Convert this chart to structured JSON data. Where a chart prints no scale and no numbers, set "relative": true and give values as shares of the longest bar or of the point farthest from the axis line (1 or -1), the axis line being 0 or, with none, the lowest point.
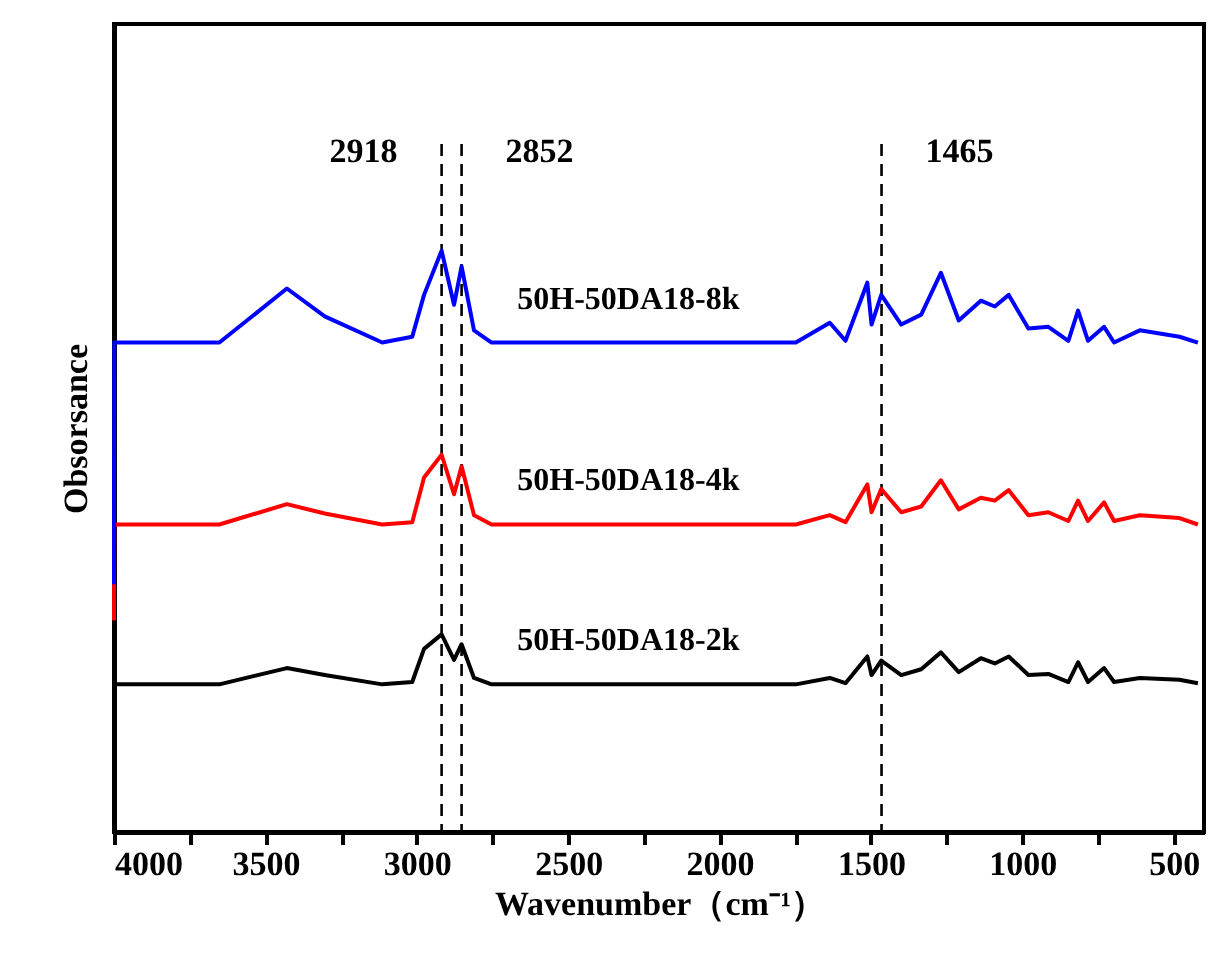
{
  "chart_data": {
    "type": "line",
    "relative": true,
    "xlabel": "Wavenumber（cm⁻¹）",
    "ylabel": "Obsorsance",
    "xlim": [
      4000,
      400
    ],
    "xticks": [
      4000,
      {
        "value": 3750,
        "label": null
      },
      3500,
      {
        "value": 3250,
        "label": null
      },
      3000,
      {
        "value": 2750,
        "label": null
      },
      2500,
      {
        "value": 2250,
        "label": null
      },
      2000,
      {
        "value": 1750,
        "label": null
      },
      1500,
      {
        "value": 1250,
        "label": null
      },
      1000,
      {
        "value": 750,
        "label": null
      },
      500
    ],
    "x": [
      4000,
      3999,
      3800,
      3652,
      3429,
      3304,
      3114,
      3015,
      2976,
      2918,
      2877,
      2852,
      2811,
      2753,
      1748,
      1636,
      1584,
      1512,
      1498,
      1466,
      1400,
      1334,
      1269,
      1210,
      1137,
      1091,
      1045,
      980,
      914,
      848,
      816,
      783,
      730,
      697,
      612,
      481,
      420
    ],
    "series": [
      {
        "name": "50H-50DA18-8k",
        "color": "#0000ff",
        "values": [
          0.426,
          0.842,
          0.842,
          0.842,
          0.935,
          0.887,
          0.842,
          0.852,
          0.924,
          1.0,
          0.907,
          0.973,
          0.863,
          0.842,
          0.842,
          0.876,
          0.845,
          0.945,
          0.873,
          0.924,
          0.873,
          0.89,
          0.962,
          0.88,
          0.914,
          0.904,
          0.924,
          0.866,
          0.869,
          0.845,
          0.897,
          0.845,
          0.869,
          0.842,
          0.863,
          0.852,
          0.842
        ]
      },
      {
        "name": "50H-50DA18-4k",
        "color": "#ff0000",
        "values": [
          0.364,
          0.529,
          0.529,
          0.529,
          0.564,
          0.548,
          0.529,
          0.533,
          0.61,
          0.649,
          0.581,
          0.629,
          0.545,
          0.529,
          0.529,
          0.545,
          0.533,
          0.598,
          0.55,
          0.59,
          0.55,
          0.56,
          0.605,
          0.555,
          0.575,
          0.57,
          0.588,
          0.545,
          0.55,
          0.535,
          0.57,
          0.535,
          0.567,
          0.535,
          0.545,
          0.54,
          0.529
        ]
      },
      {
        "name": "50H-50DA18-2k",
        "color": "#000000",
        "values": [
          0,
          0.254,
          0.254,
          0.254,
          0.282,
          0.27,
          0.254,
          0.258,
          0.315,
          0.34,
          0.296,
          0.323,
          0.265,
          0.254,
          0.254,
          0.265,
          0.256,
          0.302,
          0.27,
          0.295,
          0.27,
          0.28,
          0.309,
          0.275,
          0.299,
          0.29,
          0.302,
          0.27,
          0.272,
          0.258,
          0.292,
          0.258,
          0.282,
          0.258,
          0.265,
          0.262,
          0.256
        ]
      }
    ],
    "ref_lines": [
      {
        "axis": "x",
        "value": 2918,
        "label": "2918",
        "color": "#000000",
        "line_style": "dashed"
      },
      {
        "axis": "x",
        "value": 2852,
        "label": "2852",
        "color": "#000000",
        "line_style": "dashed"
      },
      {
        "axis": "x",
        "value": 1465,
        "label": "1465",
        "color": "#000000",
        "line_style": "dashed"
      }
    ],
    "grid": false,
    "legend": false,
    "tick_labels": "x",
    "marker": "none",
    "line_style": "solid"
  }
}
